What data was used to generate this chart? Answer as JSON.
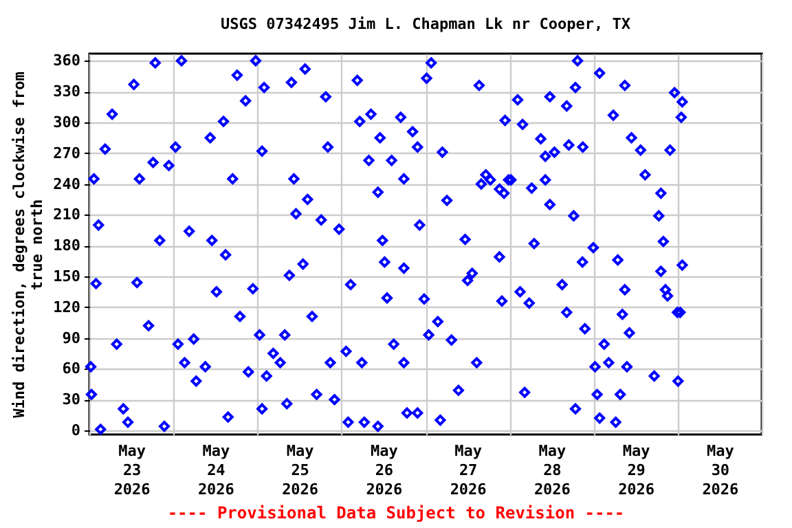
{
  "chart_data": {
    "type": "scatter",
    "title": "USGS 07342495 Jim L. Chapman Lk nr Cooper, TX",
    "ylabel": "Wind direction, degrees clockwise from true north",
    "annotations": [
      "---- Provisional Data Subject to Revision ----"
    ],
    "color": "#0000ff",
    "marker": "diamond",
    "grid": true,
    "xlim": [
      "2026-05-23T00:00",
      "2026-05-31T00:00"
    ],
    "xticks": [
      {
        "value": "2026-05-23T12:00",
        "label": "May 23 2026"
      },
      {
        "value": "2026-05-24T12:00",
        "label": "May 24 2026"
      },
      {
        "value": "2026-05-25T12:00",
        "label": "May 25 2026"
      },
      {
        "value": "2026-05-26T12:00",
        "label": "May 26 2026"
      },
      {
        "value": "2026-05-27T12:00",
        "label": "May 27 2026"
      },
      {
        "value": "2026-05-28T12:00",
        "label": "May 28 2026"
      },
      {
        "value": "2026-05-29T12:00",
        "label": "May 29 2026"
      },
      {
        "value": "2026-05-30T12:00",
        "label": "May 30 2026"
      }
    ],
    "ylim": [
      -4,
      367
    ],
    "yticks": [
      0,
      30,
      60,
      90,
      120,
      150,
      180,
      210,
      240,
      270,
      300,
      330,
      360
    ],
    "x": [
      "2026-05-23T00:24",
      "2026-05-23T00:36",
      "2026-05-23T01:18",
      "2026-05-23T02:36",
      "2026-05-23T01:54",
      "2026-05-23T03:12",
      "2026-05-23T04:30",
      "2026-05-23T06:30",
      "2026-05-23T07:48",
      "2026-05-23T09:42",
      "2026-05-23T12:42",
      "2026-05-23T14:18",
      "2026-05-23T13:36",
      "2026-05-23T16:54",
      "2026-05-23T18:48",
      "2026-05-23T20:06",
      "2026-05-23T21:24",
      "2026-05-23T22:42",
      "2026-05-23T18:12",
      "2026-05-23T11:00",
      "2026-05-24T00:36",
      "2026-05-24T02:18",
      "2026-05-24T01:18",
      "2026-05-24T03:12",
      "2026-05-24T04:30",
      "2026-05-24T06:30",
      "2026-05-24T05:48",
      "2026-05-24T09:06",
      "2026-05-24T10:30",
      "2026-05-24T11:00",
      "2026-05-24T12:18",
      "2026-05-24T14:18",
      "2026-05-24T14:54",
      "2026-05-24T15:36",
      "2026-05-24T18:12",
      "2026-05-24T16:54",
      "2026-05-24T19:00",
      "2026-05-24T20:36",
      "2026-05-24T21:24",
      "2026-05-24T23:30",
      "2026-05-24T22:42",
      "2026-05-25T01:18",
      "2026-05-25T01:54",
      "2026-05-25T00:36",
      "2026-05-25T01:18",
      "2026-05-25T02:36",
      "2026-05-25T04:30",
      "2026-05-25T06:30",
      "2026-05-25T07:48",
      "2026-05-25T08:24",
      "2026-05-25T09:42",
      "2026-05-25T10:24",
      "2026-05-25T09:06",
      "2026-05-25T11:00",
      "2026-05-25T13:00",
      "2026-05-25T13:36",
      "2026-05-25T14:18",
      "2026-05-25T15:36",
      "2026-05-25T16:54",
      "2026-05-25T18:12",
      "2026-05-25T19:30",
      "2026-05-25T20:06",
      "2026-05-25T20:48",
      "2026-05-25T22:00",
      "2026-05-25T23:18",
      "2026-05-26T01:18",
      "2026-05-26T01:54",
      "2026-05-26T02:36",
      "2026-05-26T04:30",
      "2026-05-26T05:48",
      "2026-05-26T05:12",
      "2026-05-26T06:30",
      "2026-05-26T07:48",
      "2026-05-26T08:24",
      "2026-05-26T10:24",
      "2026-05-26T10:24",
      "2026-05-26T11:00",
      "2026-05-26T11:42",
      "2026-05-26T12:18",
      "2026-05-26T13:00",
      "2026-05-26T14:18",
      "2026-05-26T14:54",
      "2026-05-26T16:54",
      "2026-05-26T17:48",
      "2026-05-26T17:48",
      "2026-05-26T18:42",
      "2026-05-26T17:48",
      "2026-05-26T20:18",
      "2026-05-26T21:42",
      "2026-05-26T22:18",
      "2026-05-26T23:36",
      "2026-05-26T21:42",
      "2026-05-27T01:36",
      "2026-05-27T00:18",
      "2026-05-27T00:54",
      "2026-05-27T03:30",
      "2026-05-27T04:12",
      "2026-05-27T04:48",
      "2026-05-27T06:06",
      "2026-05-27T07:24",
      "2026-05-27T09:24",
      "2026-05-27T11:18",
      "2026-05-27T12:00",
      "2026-05-27T13:18",
      "2026-05-27T15:18",
      "2026-05-27T14:36",
      "2026-05-27T18:30",
      "2026-05-27T21:06",
      "2026-05-27T21:48",
      "2026-05-27T22:42",
      "2026-05-27T22:24",
      "2026-05-27T23:42",
      "2026-05-27T15:54",
      "2026-05-27T21:06",
      "2026-05-27T17:12",
      "2026-05-28T00:24",
      "2026-05-28T02:18",
      "2026-05-28T03:00",
      "2026-05-28T04:18",
      "2026-05-28T03:42",
      "2026-05-28T05:36",
      "2026-05-28T07:00",
      "2026-05-28T08:54",
      "2026-05-28T10:12",
      "2026-05-28T11:30",
      "2026-05-28T11:30",
      "2026-05-28T12:48",
      "2026-05-28T15:00",
      "2026-05-28T16:18",
      "2026-05-28T16:18",
      "2026-05-28T16:54",
      "2026-05-28T18:18",
      "2026-05-28T19:24",
      "2026-05-28T18:48",
      "2026-05-28T20:48",
      "2026-05-28T20:54",
      "2026-05-28T21:30",
      "2026-05-28T18:48",
      "2026-05-28T23:54",
      "2026-05-28T06:18",
      "2026-05-28T10:12",
      "2026-05-29T00:24",
      "2026-05-29T01:00",
      "2026-05-29T01:42",
      "2026-05-29T01:42",
      "2026-05-29T03:00",
      "2026-05-29T04:18",
      "2026-05-29T05:36",
      "2026-05-29T06:18",
      "2026-05-29T06:54",
      "2026-05-29T07:36",
      "2026-05-29T08:12",
      "2026-05-29T08:54",
      "2026-05-29T08:54",
      "2026-05-29T10:12",
      "2026-05-29T09:30",
      "2026-05-29T10:48",
      "2026-05-29T13:24",
      "2026-05-29T14:42",
      "2026-05-29T17:18",
      "2026-05-29T18:36",
      "2026-05-29T19:12",
      "2026-05-29T19:54",
      "2026-05-29T19:12",
      "2026-05-29T20:30",
      "2026-05-29T21:06",
      "2026-05-29T21:48",
      "2026-05-29T23:06",
      "2026-05-29T23:54",
      "2026-05-30T00:06",
      "2026-05-30T01:00",
      "2026-05-30T01:18",
      "2026-05-30T01:18",
      "2026-05-30T00:42"
    ],
    "values": [
      62,
      35,
      245,
      200,
      143,
      1,
      274,
      308,
      84,
      21,
      337,
      245,
      144,
      102,
      358,
      185,
      4,
      258,
      261,
      8,
      276,
      360,
      84,
      66,
      194,
      48,
      89,
      62,
      285,
      185,
      135,
      301,
      171,
      13,
      346,
      245,
      111,
      321,
      57,
      360,
      138,
      272,
      334,
      93,
      21,
      53,
      75,
      66,
      93,
      26,
      339,
      245,
      151,
      211,
      162,
      352,
      225,
      111,
      35,
      205,
      325,
      276,
      66,
      30,
      196,
      77,
      8,
      142,
      341,
      66,
      301,
      8,
      263,
      308,
      4,
      232,
      285,
      185,
      164,
      129,
      263,
      84,
      305,
      245,
      158,
      17,
      66,
      291,
      276,
      200,
      128,
      17,
      358,
      343,
      93,
      106,
      10,
      271,
      224,
      88,
      39,
      186,
      146,
      153,
      336,
      66,
      244,
      169,
      126,
      302,
      231,
      244,
      240,
      235,
      249,
      244,
      322,
      135,
      37,
      298,
      124,
      182,
      284,
      267,
      325,
      220,
      271,
      142,
      316,
      115,
      278,
      209,
      360,
      334,
      164,
      276,
      99,
      21,
      178,
      236,
      244,
      62,
      35,
      348,
      12,
      84,
      66,
      307,
      8,
      166,
      35,
      113,
      336,
      137,
      95,
      62,
      285,
      273,
      249,
      53,
      209,
      231,
      184,
      155,
      137,
      131,
      273,
      329,
      115,
      48,
      305,
      320,
      161,
      115
    ]
  }
}
